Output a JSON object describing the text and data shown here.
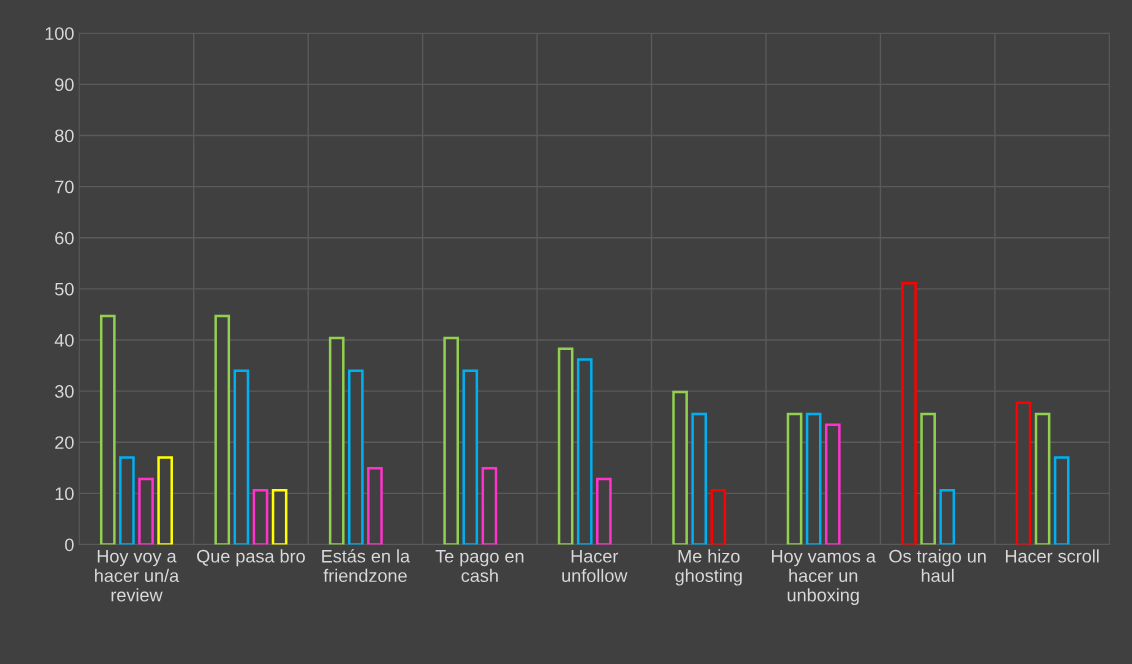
{
  "chart_data": {
    "type": "bar",
    "categories": [
      "Hoy voy a hacer un/a review",
      "Que pasa bro",
      "Estás en la friendzone",
      "Te pago en cash",
      "Hacer unfollow",
      "Me hizo ghosting",
      "Hoy vamos a hacer un unboxing",
      "Os traigo un haul",
      "Hacer scroll"
    ],
    "series": [
      {
        "colors": [
          "#92d050",
          "#92d050",
          "#92d050",
          "#92d050",
          "#92d050",
          "#92d050",
          "#92d050",
          "#ff0000",
          "#ff0000"
        ],
        "values": [
          44.7,
          44.7,
          40.4,
          40.4,
          38.3,
          29.8,
          25.5,
          51.1,
          27.7
        ]
      },
      {
        "colors": [
          "#00b0f0",
          "#00b0f0",
          "#00b0f0",
          "#00b0f0",
          "#00b0f0",
          "#00b0f0",
          "#00b0f0",
          "#92d050",
          "#92d050"
        ],
        "values": [
          17.0,
          34.0,
          34.0,
          34.0,
          36.2,
          25.5,
          25.5,
          25.5,
          25.5
        ]
      },
      {
        "colors": [
          "#ff33cc",
          "#ff33cc",
          "#ff33cc",
          "#ff33cc",
          "#ff33cc",
          "#ff0000",
          "#ff33cc",
          "#00b0f0",
          "#00b0f0"
        ],
        "values": [
          12.8,
          10.6,
          14.9,
          14.9,
          12.8,
          10.6,
          23.4,
          10.6,
          17.0
        ]
      },
      {
        "colors": [
          "#ffff00",
          "#ffff00",
          null,
          null,
          null,
          null,
          null,
          null,
          null
        ],
        "values": [
          17.0,
          10.6,
          null,
          null,
          null,
          null,
          null,
          null,
          null
        ]
      }
    ],
    "ylim": [
      0,
      100
    ],
    "yticks": [
      0,
      10,
      20,
      30,
      40,
      50,
      60,
      70,
      80,
      90,
      100
    ],
    "grid": true,
    "legend": false
  }
}
